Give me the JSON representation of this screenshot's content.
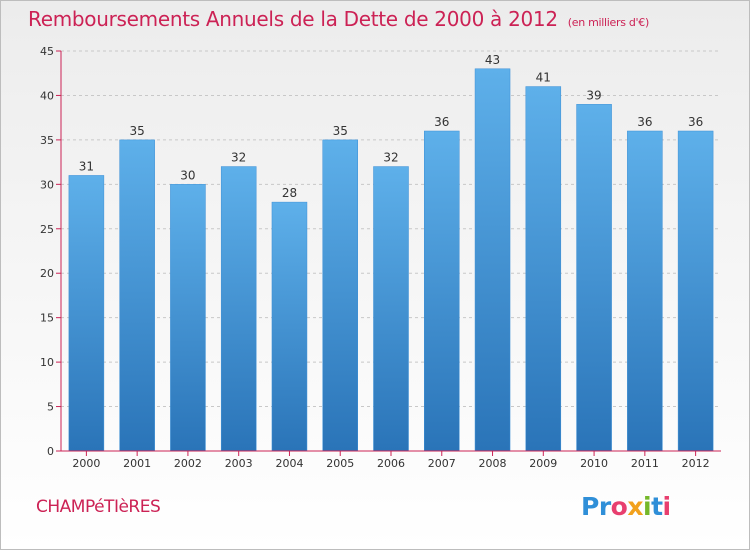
{
  "title": "Remboursements Annuels de la Dette de 2000 à 2012",
  "unit": "(en milliers d'€)",
  "commune": "CHAMPéTIèRES",
  "logo": {
    "parts": [
      "Pr",
      "o",
      "x",
      "i",
      "t",
      "i"
    ]
  },
  "colors": {
    "title": "#cc2255",
    "bar_top": "#5eb0ea",
    "bar_bottom": "#2a74b8",
    "axis": "#cc2255",
    "grid": "#c8c8c8"
  },
  "chart_data": {
    "type": "bar",
    "title": "Remboursements Annuels de la Dette de 2000 à 2012",
    "xlabel": "",
    "ylabel": "",
    "categories": [
      "2000",
      "2001",
      "2002",
      "2003",
      "2004",
      "2005",
      "2006",
      "2007",
      "2008",
      "2009",
      "2010",
      "2011",
      "2012"
    ],
    "values": [
      31,
      35,
      30,
      32,
      28,
      35,
      32,
      36,
      43,
      41,
      39,
      36,
      36
    ],
    "ylim": [
      0,
      45
    ],
    "yticks": [
      0,
      5,
      10,
      15,
      20,
      25,
      30,
      35,
      40,
      45
    ],
    "grid": true,
    "data_labels": true
  }
}
